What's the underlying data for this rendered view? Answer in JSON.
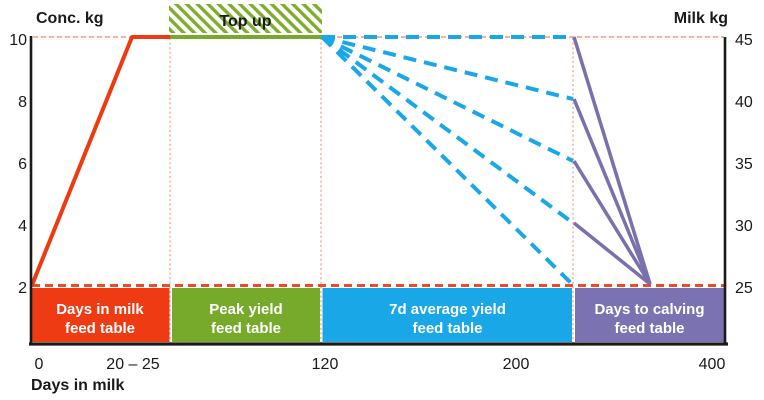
{
  "header": {
    "left_axis_title": "Conc. kg",
    "right_axis_title": "Milk kg"
  },
  "annotations": {
    "top_up": "Top up"
  },
  "x_axis": {
    "title": "Days in milk",
    "ticks": [
      "0",
      "20 – 25",
      "120",
      "200",
      "400"
    ]
  },
  "left_axis": {
    "ticks": [
      "10",
      "8",
      "6",
      "4",
      "2"
    ]
  },
  "right_axis": {
    "ticks": [
      "45",
      "40",
      "35",
      "30",
      "25"
    ]
  },
  "bands": [
    {
      "label_lines": [
        "Days in milk",
        "feed table"
      ],
      "color": "#EE3B14"
    },
    {
      "label_lines": [
        "Peak yield",
        "feed table"
      ],
      "color": "#77A92A"
    },
    {
      "label_lines": [
        "7d average yield",
        "feed table"
      ],
      "color": "#1AA7E8"
    },
    {
      "label_lines": [
        "Days to calving",
        "feed table"
      ],
      "color": "#7B73B1"
    }
  ],
  "colors": {
    "ramp_orange": "#EE3A10",
    "plateau_green": "#77A92A",
    "projection_blue": "#1AA7E8",
    "taper_purple": "#7A70AD",
    "ref_dashed_light": "#F9977C",
    "ref_dashed_strong": "#EE4A26",
    "ref_dotted_vertical": "#F5A288",
    "hatch_green": "#7FAE2E",
    "hatch_bg": "#ffffff",
    "axis_black": "#1a1a1a"
  },
  "chart_data": {
    "type": "line",
    "title": "",
    "xlabel": "Days in milk",
    "x_ticks": [
      "0",
      "20 – 25",
      "120",
      "200",
      "400"
    ],
    "left_axis": {
      "label": "Conc. kg",
      "ticks": [
        10,
        8,
        6,
        4,
        2
      ],
      "range": [
        2,
        10
      ]
    },
    "right_axis": {
      "label": "Milk kg",
      "ticks": [
        45,
        40,
        35,
        30,
        25
      ],
      "range": [
        25,
        45
      ]
    },
    "grid": false,
    "legend": "none",
    "annotations": [
      {
        "label": "Top up",
        "type": "hatched-span",
        "span_x": [
          "20 – 25",
          "120"
        ],
        "at": "top"
      }
    ],
    "reference_lines": [
      {
        "axis": "left",
        "value": 10,
        "style": "dashed"
      },
      {
        "axis": "left",
        "value": 2,
        "style": "dashed"
      }
    ],
    "series": [
      {
        "name": "Days in milk ramp",
        "color": "#EE3A10",
        "style": "solid",
        "axis": "left",
        "points": [
          {
            "day": 0,
            "conc_kg": 2
          },
          {
            "day": "20 – 25",
            "conc_kg": 10
          }
        ]
      },
      {
        "name": "Peak yield plateau",
        "color": "#77A92A",
        "style": "solid",
        "axis": "left",
        "points": [
          {
            "day": "20 – 25",
            "conc_kg": 10
          },
          {
            "day": 120,
            "conc_kg": 10
          }
        ]
      },
      {
        "name": "7d average yield projections",
        "color": "#1AA7E8",
        "style": "dashed",
        "axis": "right",
        "from": {
          "day": 120,
          "milk_kg": 45
        },
        "to_milk_kg": [
          45,
          40,
          35,
          30,
          25
        ]
      },
      {
        "name": "Days to calving taper",
        "color": "#7A70AD",
        "style": "solid",
        "axis": "right",
        "from_milk_kg": [
          45,
          40,
          35,
          30
        ],
        "to": {
          "milk_kg": 25
        }
      }
    ],
    "bands": [
      {
        "label": "Days in milk feed table",
        "color": "#EE3B14"
      },
      {
        "label": "Peak yield feed table",
        "color": "#77A92A"
      },
      {
        "label": "7d average yield feed table",
        "color": "#1AA7E8"
      },
      {
        "label": "Days to calving feed table",
        "color": "#7B73B1"
      }
    ]
  }
}
